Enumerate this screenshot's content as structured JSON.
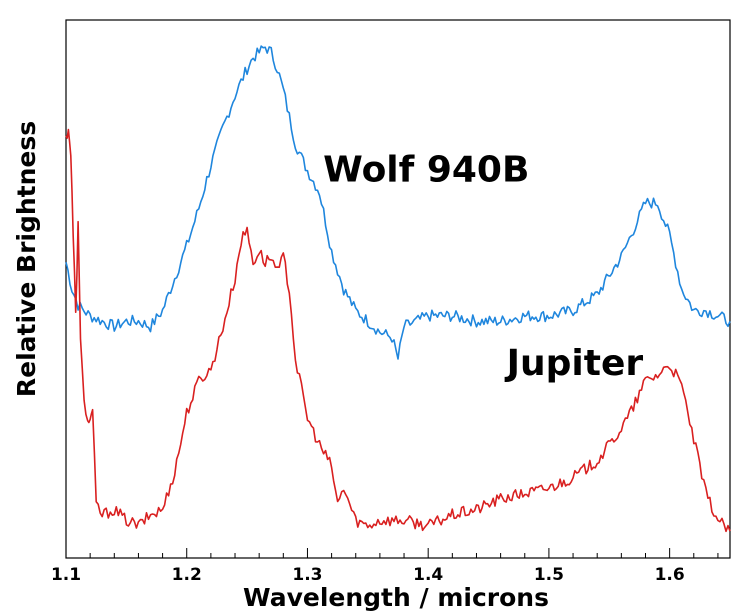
{
  "chart_data": {
    "type": "line",
    "title": "",
    "xlabel": "Wavelength / microns",
    "ylabel": "Relative Brightness",
    "xlim": [
      1.1,
      1.65
    ],
    "ylim": [
      0,
      1
    ],
    "xticks": [
      1.1,
      1.2,
      1.3,
      1.4,
      1.5,
      1.6
    ],
    "xtick_labels": [
      "1.1",
      "1.2",
      "1.3",
      "1.4",
      "1.5",
      "1.6"
    ],
    "y_tick_labels_shown": false,
    "grid": false,
    "series": [
      {
        "name": "Wolf 940B",
        "color": "#1f86dd",
        "x": [
          1.1,
          1.105,
          1.11,
          1.12,
          1.13,
          1.14,
          1.15,
          1.16,
          1.17,
          1.18,
          1.19,
          1.2,
          1.21,
          1.22,
          1.23,
          1.24,
          1.25,
          1.255,
          1.26,
          1.265,
          1.27,
          1.275,
          1.28,
          1.29,
          1.3,
          1.31,
          1.32,
          1.33,
          1.34,
          1.35,
          1.36,
          1.37,
          1.375,
          1.38,
          1.39,
          1.4,
          1.42,
          1.44,
          1.46,
          1.48,
          1.5,
          1.52,
          1.54,
          1.56,
          1.57,
          1.58,
          1.59,
          1.6,
          1.61,
          1.62,
          1.63,
          1.64,
          1.65
        ],
        "values": [
          0.55,
          0.5,
          0.47,
          0.45,
          0.44,
          0.43,
          0.44,
          0.44,
          0.43,
          0.46,
          0.52,
          0.58,
          0.65,
          0.73,
          0.8,
          0.86,
          0.91,
          0.93,
          0.94,
          0.95,
          0.94,
          0.91,
          0.87,
          0.77,
          0.72,
          0.68,
          0.57,
          0.5,
          0.46,
          0.44,
          0.42,
          0.41,
          0.37,
          0.43,
          0.44,
          0.45,
          0.45,
          0.44,
          0.44,
          0.45,
          0.45,
          0.46,
          0.49,
          0.56,
          0.61,
          0.66,
          0.66,
          0.6,
          0.5,
          0.46,
          0.46,
          0.45,
          0.44
        ]
      },
      {
        "name": "Jupiter",
        "color": "#d92020",
        "x": [
          1.1,
          1.102,
          1.104,
          1.106,
          1.108,
          1.11,
          1.112,
          1.115,
          1.118,
          1.12,
          1.122,
          1.125,
          1.13,
          1.14,
          1.15,
          1.16,
          1.17,
          1.18,
          1.19,
          1.2,
          1.21,
          1.22,
          1.23,
          1.24,
          1.245,
          1.25,
          1.255,
          1.26,
          1.265,
          1.27,
          1.275,
          1.28,
          1.285,
          1.29,
          1.3,
          1.31,
          1.32,
          1.325,
          1.33,
          1.34,
          1.35,
          1.36,
          1.38,
          1.4,
          1.42,
          1.44,
          1.46,
          1.48,
          1.5,
          1.52,
          1.54,
          1.56,
          1.57,
          1.58,
          1.59,
          1.6,
          1.61,
          1.62,
          1.63,
          1.64,
          1.65
        ],
        "values": [
          0.78,
          0.8,
          0.75,
          0.6,
          0.45,
          0.62,
          0.4,
          0.3,
          0.25,
          0.26,
          0.27,
          0.1,
          0.08,
          0.09,
          0.07,
          0.06,
          0.08,
          0.09,
          0.16,
          0.27,
          0.33,
          0.35,
          0.43,
          0.52,
          0.59,
          0.61,
          0.55,
          0.57,
          0.55,
          0.56,
          0.53,
          0.56,
          0.5,
          0.37,
          0.26,
          0.21,
          0.17,
          0.1,
          0.13,
          0.07,
          0.06,
          0.07,
          0.07,
          0.06,
          0.08,
          0.09,
          0.11,
          0.12,
          0.13,
          0.15,
          0.18,
          0.24,
          0.28,
          0.33,
          0.34,
          0.36,
          0.32,
          0.22,
          0.12,
          0.07,
          0.05
        ]
      }
    ],
    "annotations": [
      {
        "text": "Wolf 940B",
        "x": 1.313,
        "y": 0.7
      },
      {
        "text": "Jupiter",
        "x": 1.465,
        "y": 0.34
      }
    ]
  }
}
